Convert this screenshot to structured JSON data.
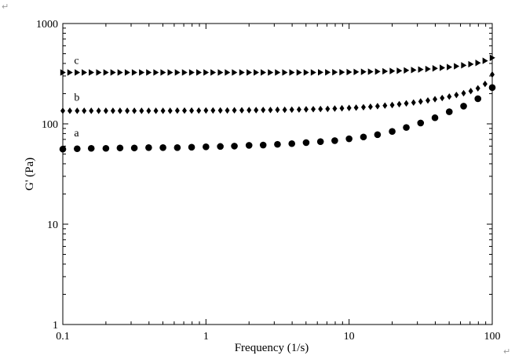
{
  "page": {
    "corner_mark_top": "↵",
    "corner_mark_bottom": "↵"
  },
  "chart_data": {
    "type": "scatter",
    "title": "",
    "xlabel": "Frequency (1/s)",
    "ylabel": "G' (Pa)",
    "xscale": "log",
    "yscale": "log",
    "xlim": [
      0.1,
      100
    ],
    "ylim": [
      1,
      1000
    ],
    "x_ticks": [
      {
        "value": 0.1,
        "label": "0.1"
      },
      {
        "value": 1,
        "label": "1"
      },
      {
        "value": 10,
        "label": "10"
      },
      {
        "value": 100,
        "label": "100"
      }
    ],
    "y_ticks": [
      {
        "value": 1,
        "label": "1"
      },
      {
        "value": 10,
        "label": "10"
      },
      {
        "value": 100,
        "label": "100"
      },
      {
        "value": 1000,
        "label": "1000"
      }
    ],
    "grid": false,
    "legend": "none",
    "series": [
      {
        "label": "a",
        "label_at": [
          0.12,
          75
        ],
        "marker": "circle",
        "color": "#000000",
        "x": [
          0.1,
          0.126,
          0.158,
          0.2,
          0.251,
          0.316,
          0.398,
          0.501,
          0.631,
          0.794,
          1,
          1.26,
          1.58,
          2,
          2.51,
          3.16,
          3.98,
          5.01,
          6.31,
          7.94,
          10,
          12.6,
          15.8,
          20,
          25.1,
          31.6,
          39.8,
          50.1,
          63.1,
          79.4,
          100
        ],
        "y": [
          56,
          56.5,
          57,
          57,
          57.5,
          57.5,
          58,
          58,
          58,
          58.5,
          59,
          59.5,
          60,
          61,
          61.5,
          62.5,
          63.5,
          65,
          66.5,
          68,
          71,
          74,
          78,
          84,
          92,
          102,
          115,
          132,
          150,
          178,
          230
        ]
      },
      {
        "label": "b",
        "label_at": [
          0.12,
          170
        ],
        "marker": "diamond",
        "color": "#000000",
        "x": [
          0.1,
          0.112,
          0.126,
          0.141,
          0.158,
          0.178,
          0.2,
          0.224,
          0.251,
          0.282,
          0.316,
          0.355,
          0.398,
          0.447,
          0.501,
          0.562,
          0.631,
          0.708,
          0.794,
          0.891,
          1,
          1.12,
          1.26,
          1.41,
          1.58,
          1.78,
          2,
          2.24,
          2.51,
          2.82,
          3.16,
          3.55,
          3.98,
          4.47,
          5.01,
          5.62,
          6.31,
          7.08,
          7.94,
          8.91,
          10,
          11.2,
          12.6,
          14.1,
          15.8,
          17.8,
          20,
          22.4,
          25.1,
          28.2,
          31.6,
          35.5,
          39.8,
          44.7,
          50.1,
          56.2,
          63.1,
          70.8,
          79.4,
          89.1,
          100
        ],
        "y": [
          135,
          135,
          135,
          135,
          135,
          135,
          135,
          135,
          135,
          135,
          135,
          135,
          135,
          135,
          135,
          135,
          135.5,
          135.5,
          135.5,
          135.5,
          136,
          136,
          136,
          136,
          136.5,
          136.5,
          137,
          137,
          137.5,
          137.5,
          138,
          138,
          138.5,
          139,
          139.5,
          140,
          140.5,
          141,
          142,
          143,
          144,
          145,
          146.5,
          148,
          150,
          152,
          154,
          157,
          160,
          163,
          167,
          171,
          176,
          181,
          187,
          194,
          202,
          212,
          226,
          250,
          310
        ]
      },
      {
        "label": "c",
        "label_at": [
          0.12,
          395
        ],
        "marker": "triangle-right",
        "color": "#000000",
        "x": [
          0.1,
          0.112,
          0.126,
          0.141,
          0.158,
          0.178,
          0.2,
          0.224,
          0.251,
          0.282,
          0.316,
          0.355,
          0.398,
          0.447,
          0.501,
          0.562,
          0.631,
          0.708,
          0.794,
          0.891,
          1,
          1.12,
          1.26,
          1.41,
          1.58,
          1.78,
          2,
          2.24,
          2.51,
          2.82,
          3.16,
          3.55,
          3.98,
          4.47,
          5.01,
          5.62,
          6.31,
          7.08,
          7.94,
          8.91,
          10,
          11.2,
          12.6,
          14.1,
          15.8,
          17.8,
          20,
          22.4,
          25.1,
          28.2,
          31.6,
          35.5,
          39.8,
          44.7,
          50.1,
          56.2,
          63.1,
          70.8,
          79.4,
          89.1,
          100
        ],
        "y": [
          325,
          325,
          325,
          325,
          325,
          325,
          325,
          325,
          325,
          325,
          325,
          325,
          325,
          325,
          325,
          325,
          325,
          325,
          325,
          325,
          325,
          325,
          325,
          325,
          325,
          325,
          325,
          325,
          325,
          325,
          325,
          325,
          325,
          325,
          325,
          325,
          326,
          326,
          327,
          327,
          328,
          329,
          330,
          331,
          332,
          334,
          336,
          338,
          341,
          344,
          348,
          352,
          357,
          362,
          368,
          375,
          383,
          393,
          405,
          425,
          455
        ]
      }
    ]
  }
}
